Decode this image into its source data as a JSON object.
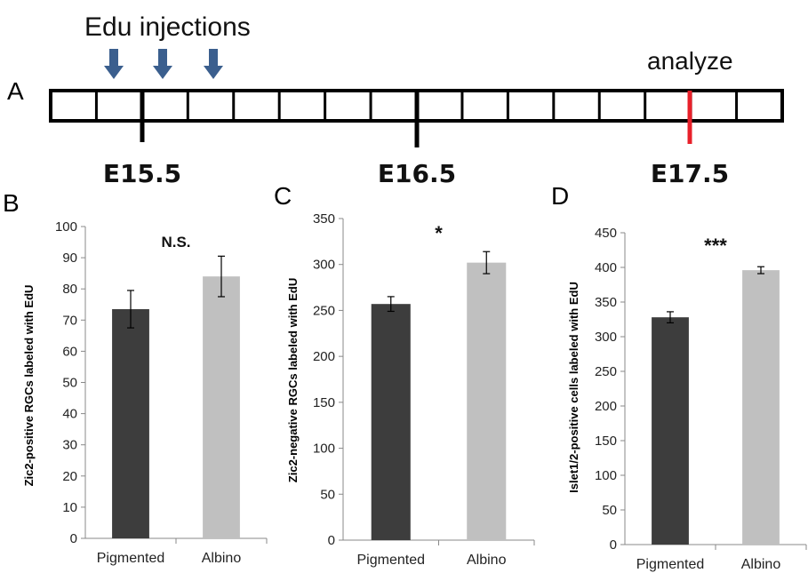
{
  "panel_a": {
    "label": "A",
    "injection_label": "Edu injections",
    "analyze_label": "analyze",
    "timepoints": [
      "E15.5",
      "E16.5",
      "E17.5"
    ],
    "arrow_color": "#3b5f8e",
    "analyze_color": "#e8202a"
  },
  "chart_data": [
    {
      "type": "bar",
      "panel": "B",
      "categories": [
        "Pigmented",
        "Albino"
      ],
      "values": [
        73.5,
        84
      ],
      "errors": [
        6,
        6.5
      ],
      "bar_colors": [
        "#3d3d3d",
        "#c0c0c0"
      ],
      "title": "",
      "xlabel": "",
      "ylabel": "Zic2-positive RGCs labeled with EdU",
      "ylim": [
        0,
        100
      ],
      "yticks": [
        0,
        10,
        20,
        30,
        40,
        50,
        60,
        70,
        80,
        90,
        100
      ],
      "significance": "N.S."
    },
    {
      "type": "bar",
      "panel": "C",
      "categories": [
        "Pigmented",
        "Albino"
      ],
      "values": [
        257,
        302
      ],
      "errors": [
        8,
        12
      ],
      "bar_colors": [
        "#3d3d3d",
        "#c0c0c0"
      ],
      "title": "",
      "xlabel": "",
      "ylabel": "Zic2-negative RGCs labeled with EdU",
      "ylim": [
        0,
        350
      ],
      "yticks": [
        0,
        50,
        100,
        150,
        200,
        250,
        300,
        350
      ],
      "significance": "*"
    },
    {
      "type": "bar",
      "panel": "D",
      "categories": [
        "Pigmented",
        "Albino"
      ],
      "values": [
        328,
        396
      ],
      "errors": [
        8,
        5
      ],
      "bar_colors": [
        "#3d3d3d",
        "#c0c0c0"
      ],
      "title": "",
      "xlabel": "",
      "ylabel": "Islet1/2-positive cells labeled with EdU",
      "ylim": [
        0,
        450
      ],
      "yticks": [
        0,
        50,
        100,
        150,
        200,
        250,
        300,
        350,
        400,
        450
      ],
      "significance": "***"
    }
  ]
}
